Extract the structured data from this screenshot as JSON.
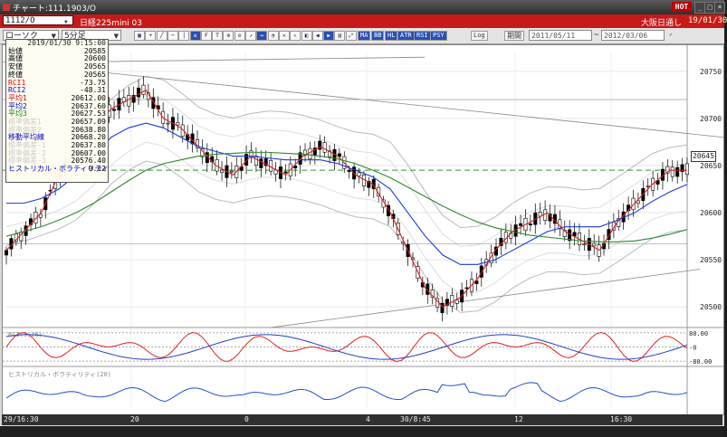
{
  "window": {
    "title": "チャート:111.1903/O",
    "hot_label": "HOT",
    "controls": [
      "_",
      "□",
      "×"
    ]
  },
  "symbol_bar": {
    "code": "1112/O",
    "name": "日経225mini 03",
    "exchange": "大阪日通し",
    "date": "19/01/30",
    "bg_color": "#c61a1a"
  },
  "toolbar": {
    "chart_type": "ローソク",
    "interval": "5分足",
    "tools": [
      "grid-icon",
      "crosshair-icon",
      "trend-line-icon",
      "horizontal-line-icon",
      "vertical-line-icon",
      "channel-icon",
      "fibonacci-icon",
      "text-icon",
      "zoom-in-icon",
      "zoom-out-icon",
      "arrow-icon",
      "measure-icon",
      "cycle-icon",
      "delete-icon",
      "pointer-icon",
      "color-icon",
      "scroll-left-icon",
      "scroll-right-icon",
      "page-icon",
      "fit-icon"
    ],
    "indicator_buttons": [
      "MA",
      "BB",
      "HL",
      "ATR",
      "RSI",
      "PSY"
    ],
    "log_label": "Log",
    "period_label": "期間",
    "date_from": "2011/05/11",
    "date_to": "2012/03/06"
  },
  "info_panel": {
    "timestamp": "2019/01/30 9:15:00",
    "rows": [
      {
        "label": "始値",
        "value": "20585",
        "color": "#000"
      },
      {
        "label": "高値",
        "value": "20600",
        "color": "#000"
      },
      {
        "label": "安値",
        "value": "20565",
        "color": "#000"
      },
      {
        "label": "終値",
        "value": "20565",
        "color": "#000"
      },
      {
        "label": "RCI1",
        "value": "-73.75",
        "color": "#d00"
      },
      {
        "label": "RCI2",
        "value": "-48.31",
        "color": "#00c"
      },
      {
        "label": "平均1",
        "value": "20612.00",
        "color": "#d00"
      },
      {
        "label": "平均2",
        "value": "20637.60",
        "color": "#00c"
      },
      {
        "label": "平均3",
        "value": "20627.53",
        "color": "#080"
      },
      {
        "label": "標準偏差1",
        "value": "20657.09",
        "color": "#ccc"
      },
      {
        "label": "標準偏差2",
        "value": "20638.80",
        "color": "#ccc"
      },
      {
        "label": "移動平均線",
        "value": "20668.20",
        "color": "#00c"
      },
      {
        "label": "標準偏差-1",
        "value": "20637.80",
        "color": "#ccc"
      },
      {
        "label": "標準偏差-2",
        "value": "20607.00",
        "color": "#ccc"
      },
      {
        "label": "標準偏差-3",
        "value": "20576.40",
        "color": "#ccc"
      },
      {
        "label": "ヒストリカル・ボラティリティ",
        "value": "0.12",
        "color": "#00c"
      }
    ]
  },
  "price_axis": {
    "labels": [
      "20750",
      "20700",
      "20650",
      "20600",
      "20550",
      "20500"
    ],
    "current_price": "20645"
  },
  "rci_panel": {
    "title": "RCI(9,26)",
    "labels": [
      "80.00",
      "-0",
      "-80.00"
    ]
  },
  "hv_panel": {
    "title": "ヒストリカル・ボラティリティ(20)"
  },
  "time_axis": {
    "labels": [
      "29/16:30",
      "20",
      "0",
      "4",
      "30/8:45",
      "12",
      "16:30"
    ]
  },
  "chart_data": {
    "type": "line",
    "ylim": [
      20480,
      20770
    ],
    "series": [
      {
        "values": [
          20560,
          20580,
          20600,
          20640,
          20660,
          20690,
          20710,
          20720,
          20730,
          20700,
          20690,
          20670,
          20650,
          20640,
          20660,
          20650,
          20640,
          20660,
          20670,
          20660,
          20640,
          20630,
          20600,
          20560,
          20520,
          20500,
          20510,
          20530,
          20560,
          20580,
          20590,
          20600,
          20580,
          20570,
          20560,
          20590,
          20610,
          20630,
          20645,
          20645
        ]
      },
      {
        "values": [
          20610,
          20610,
          20615,
          20625,
          20640,
          20660,
          20680,
          20690,
          20695,
          20690,
          20680,
          20670,
          20665,
          20660,
          20660,
          20658,
          20656,
          20656,
          20656,
          20652,
          20645,
          20638,
          20625,
          20600,
          20575,
          20555,
          20545,
          20545,
          20550,
          20560,
          20570,
          20580,
          20585,
          20585,
          20585,
          20592,
          20600,
          20612,
          20622,
          20630
        ]
      },
      {
        "values": [
          20575,
          20580,
          20585,
          20592,
          20600,
          20610,
          20622,
          20634,
          20645,
          20652,
          20656,
          20660,
          20662,
          20663,
          20664,
          20664,
          20663,
          20662,
          20660,
          20657,
          20652,
          20645,
          20637,
          20627,
          20617,
          20607,
          20598,
          20590,
          20584,
          20580,
          20576,
          20574,
          20572,
          20570,
          20569,
          20569,
          20570,
          20573,
          20577,
          20582
        ]
      }
    ],
    "grid": true
  },
  "colors": {
    "up": "#ffffff",
    "down": "#000000",
    "ma1": "#d42020",
    "ma2": "#1a3ad8",
    "ma3": "#2a8a2a",
    "band": "#c8c8c8",
    "dash": "#2a9a2a"
  }
}
